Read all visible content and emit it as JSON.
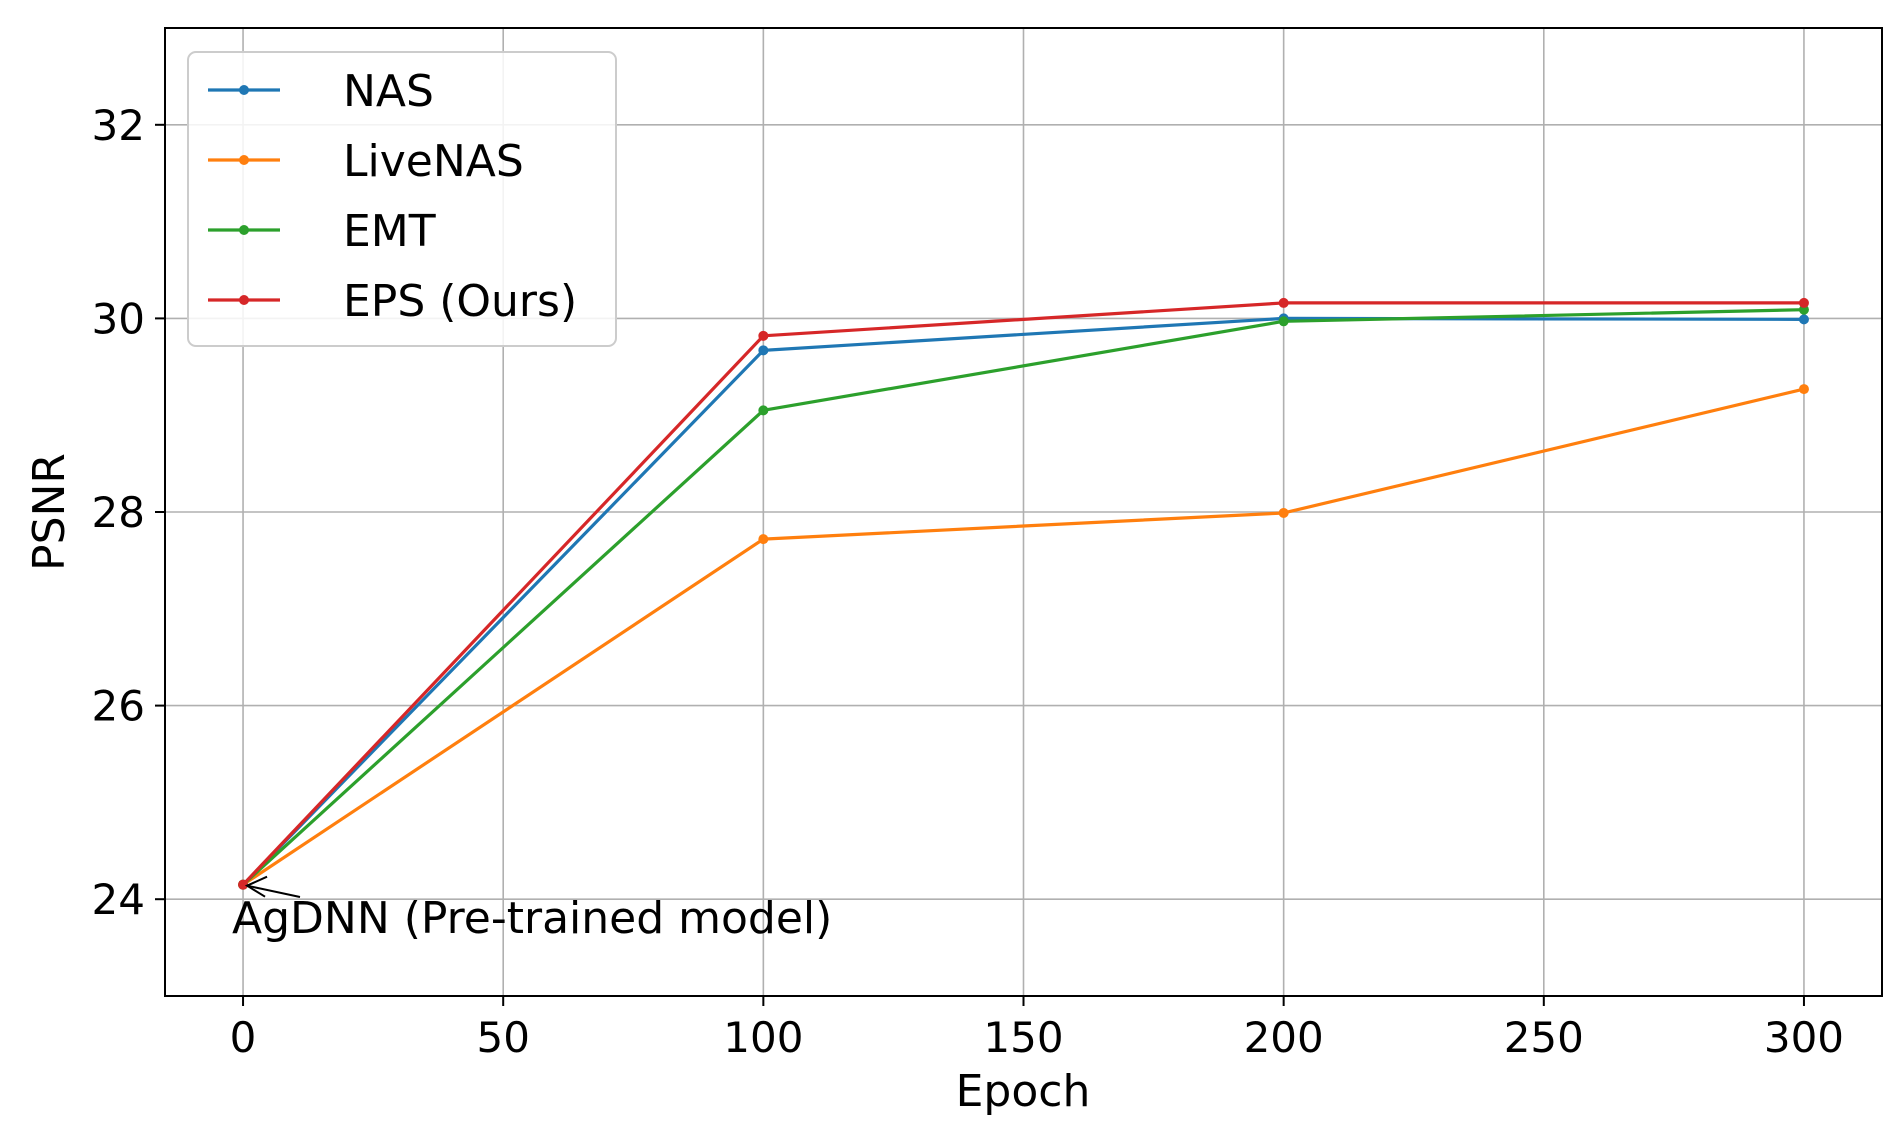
{
  "chart_data": {
    "type": "line",
    "title": "",
    "xlabel": "Epoch",
    "ylabel": "PSNR",
    "x": [
      0,
      100,
      200,
      300
    ],
    "xlim": [
      -15,
      315
    ],
    "ylim": [
      23,
      33
    ],
    "xticks": [
      0,
      50,
      100,
      150,
      200,
      250,
      300
    ],
    "yticks": [
      24,
      26,
      28,
      30,
      32
    ],
    "grid": true,
    "legend_position": "top-left",
    "series": [
      {
        "name": "NAS",
        "color": "#1f77b4",
        "values": [
          24.15,
          29.67,
          30.0,
          29.99
        ]
      },
      {
        "name": "LiveNAS",
        "color": "#ff7f0e",
        "values": [
          24.15,
          27.72,
          27.99,
          29.27
        ]
      },
      {
        "name": "EMT",
        "color": "#2ca02c",
        "values": [
          24.15,
          29.05,
          29.97,
          30.09
        ]
      },
      {
        "name": "EPS (Ours)",
        "color": "#d62728",
        "values": [
          24.15,
          29.82,
          30.16,
          30.16
        ]
      }
    ],
    "annotation": {
      "text": "AgDNN (Pre-trained model)",
      "x": 0,
      "y": 24.15
    }
  }
}
